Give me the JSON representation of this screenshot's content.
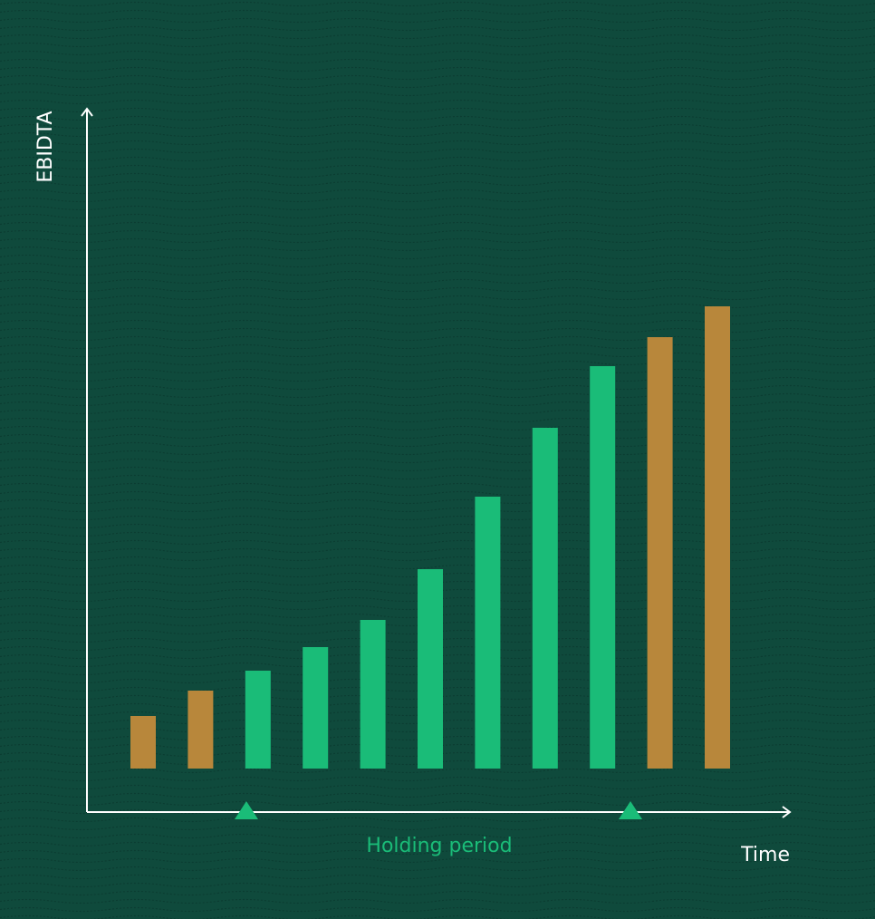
{
  "chart_data": {
    "type": "bar",
    "y_label": "EBIDTA",
    "x_label": "Time",
    "annotation": "Holding period",
    "categories": [
      null,
      null,
      null,
      null,
      null,
      null,
      null,
      null,
      null,
      null,
      null
    ],
    "values": [
      58,
      86,
      108,
      134,
      164,
      220,
      300,
      376,
      444,
      476,
      510
    ],
    "colors": [
      "#b8873b",
      "#b8873b",
      "#1abc78",
      "#1abc78",
      "#1abc78",
      "#1abc78",
      "#1abc78",
      "#1abc78",
      "#1abc78",
      "#b8873b",
      "#b8873b"
    ],
    "ylim": [
      0,
      728
    ]
  }
}
